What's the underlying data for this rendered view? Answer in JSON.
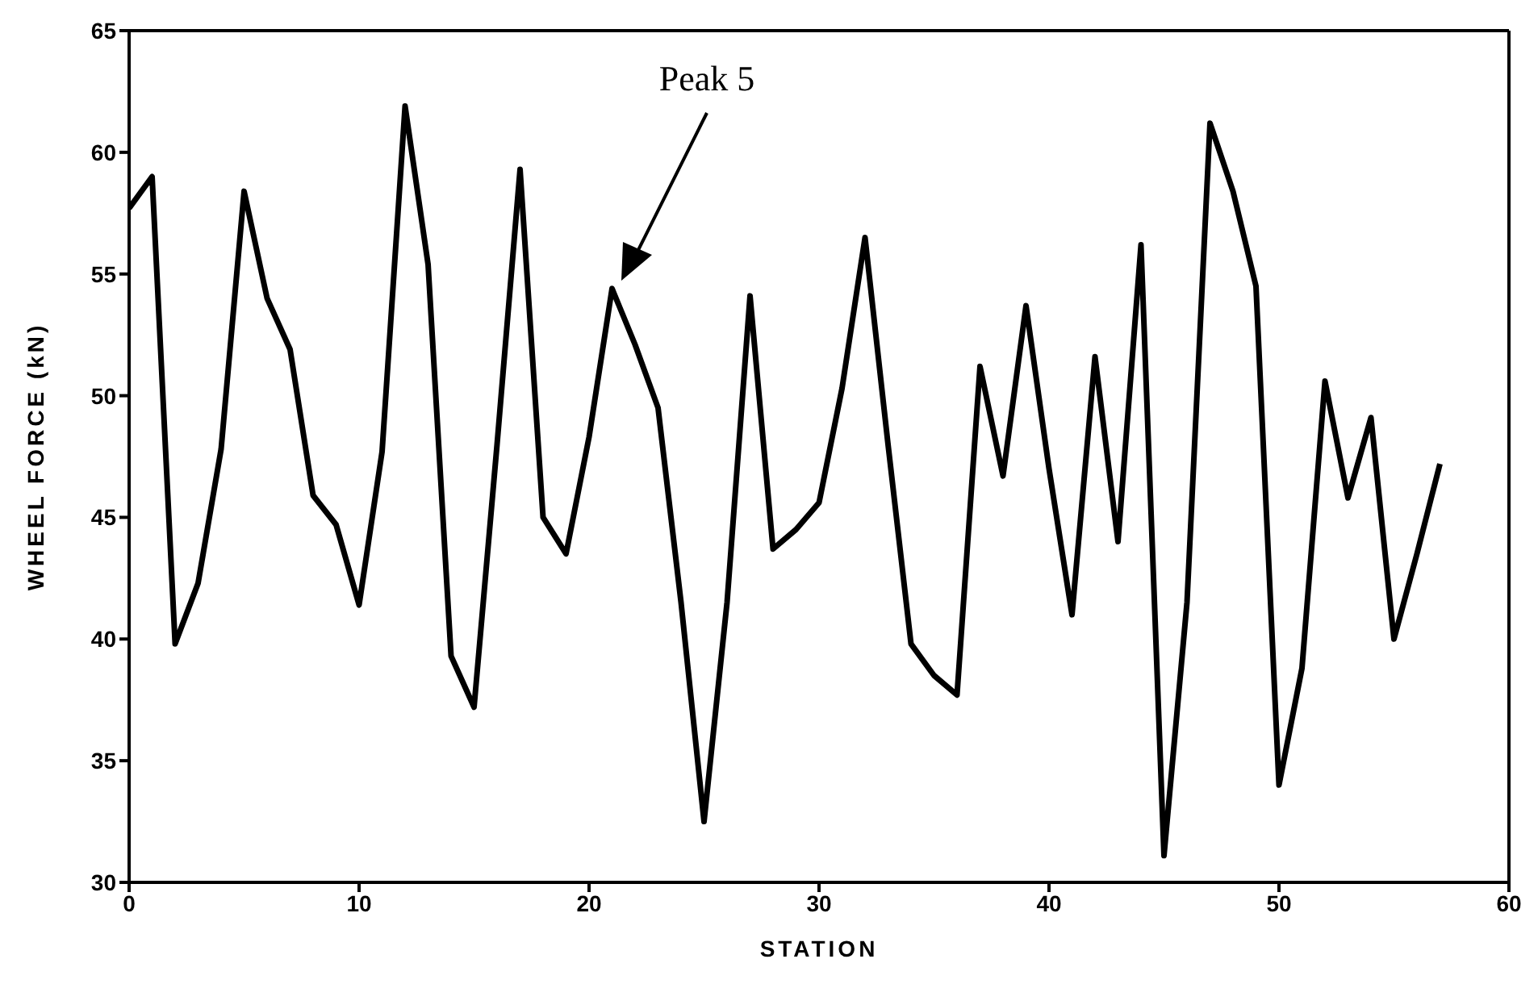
{
  "chart_data": {
    "type": "line",
    "xlabel": "STATION",
    "ylabel": "WHEEL FORCE (kN)",
    "x": [
      0,
      1,
      2,
      3,
      4,
      5,
      6,
      7,
      8,
      9,
      10,
      11,
      12,
      13,
      14,
      15,
      16,
      17,
      18,
      19,
      20,
      21,
      22,
      23,
      24,
      25,
      26,
      27,
      28,
      29,
      30,
      31,
      32,
      33,
      34,
      35,
      36,
      37,
      38,
      39,
      40,
      41,
      42,
      43,
      44,
      45,
      46,
      47,
      48,
      49,
      50,
      51,
      52,
      53,
      54,
      55,
      56,
      57
    ],
    "series": [
      {
        "color": "#000000",
        "values": [
          57.7,
          59,
          39.8,
          42.3,
          47.8,
          58.4,
          54,
          51.9,
          45.9,
          44.7,
          41.4,
          47.7,
          61.9,
          55.4,
          39.3,
          37.2,
          48,
          59.3,
          45,
          43.5,
          48.3,
          54.4,
          52.1,
          49.5,
          41.5,
          32.5,
          41.5,
          54.1,
          43.7,
          44.5,
          45.6,
          50.3,
          56.5,
          48,
          39.8,
          38.5,
          37.7,
          51.2,
          46.7,
          53.7,
          47,
          41,
          51.6,
          44,
          56.2,
          31.1,
          41.5,
          61.2,
          58.4,
          54.5,
          34,
          38.8,
          50.6,
          45.8,
          49.1,
          40,
          43.5,
          47.2
        ]
      }
    ],
    "xlim": [
      0,
      60
    ],
    "xticks": [
      0,
      10,
      20,
      30,
      40,
      50,
      60
    ],
    "ylim": [
      30,
      65
    ],
    "yticks": [
      30,
      35,
      40,
      45,
      50,
      55,
      60,
      65
    ],
    "grid": false,
    "legend": false,
    "marker": "none",
    "line_style": "solid",
    "annotations": [
      "Peak 5"
    ]
  }
}
